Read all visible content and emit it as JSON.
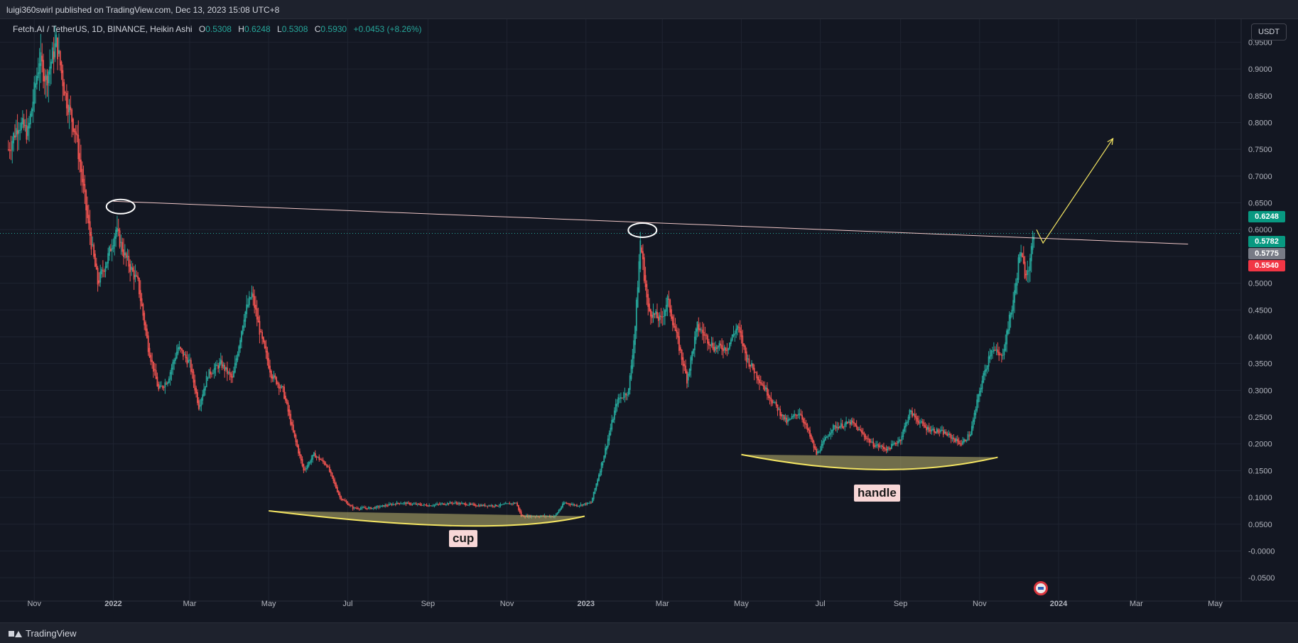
{
  "header": {
    "published_text": "luigi360swirl published on TradingView.com, Dec 13, 2023 15:08 UTC+8"
  },
  "legend": {
    "symbol": "Fetch.AI / TetherUS, 1D, BINANCE, Heikin Ashi",
    "open_key": "O",
    "open": "0.5308",
    "high_key": "H",
    "high": "0.6248",
    "low_key": "L",
    "low": "0.5308",
    "close_key": "C",
    "close": "0.5930",
    "change": "+0.0453 (+8.26%)"
  },
  "currency_button": "USDT",
  "price_tags": [
    {
      "label": "0.6248",
      "value": 0.6248,
      "color": "#089981"
    },
    {
      "label": "0.5782",
      "value": 0.5782,
      "color": "#089981"
    },
    {
      "label": "0.5775",
      "value": 0.5775,
      "color": "#787b86"
    },
    {
      "label": "0.5540",
      "value": 0.554,
      "color": "#f23645"
    }
  ],
  "annotations": {
    "cup_label": "cup",
    "handle_label": "handle"
  },
  "footer": {
    "brand": "TradingView"
  },
  "icons": {
    "brand": "tradingview-logo-icon",
    "event": "us-flag-event-icon"
  },
  "colors": {
    "up": "#26a69a",
    "down": "#ef5350",
    "background": "#131722",
    "trendline": "#f0c7c7",
    "cup_line": "#f5e663",
    "arrow": "#f5e663"
  },
  "chart_data": {
    "type": "candlestick",
    "style": "Heikin Ashi",
    "ylim": [
      -0.075,
      0.985
    ],
    "y_ticks": [
      "0.9500",
      "0.9000",
      "0.8500",
      "0.8000",
      "0.7500",
      "0.7000",
      "0.6500",
      "0.6000",
      "0.5500",
      "0.5000",
      "0.4500",
      "0.4000",
      "0.3500",
      "0.3000",
      "0.2500",
      "0.2000",
      "0.1500",
      "0.1000",
      "0.0500",
      "-0.0000",
      "-0.0500"
    ],
    "y_tick_values": [
      0.95,
      0.9,
      0.85,
      0.8,
      0.75,
      0.7,
      0.65,
      0.6,
      0.55,
      0.5,
      0.45,
      0.4,
      0.35,
      0.3,
      0.25,
      0.2,
      0.15,
      0.1,
      0.05,
      0.0,
      -0.05
    ],
    "x_ticks": [
      "Nov",
      "2022",
      "Mar",
      "May",
      "Jul",
      "Sep",
      "Nov",
      "2023",
      "Mar",
      "May",
      "Jul",
      "Sep",
      "Nov",
      "2024",
      "Mar",
      "May"
    ],
    "x_tick_dates": [
      "2021-11-01",
      "2022-01-01",
      "2022-03-01",
      "2022-05-01",
      "2022-07-01",
      "2022-09-01",
      "2022-11-01",
      "2023-01-01",
      "2023-03-01",
      "2023-05-01",
      "2023-07-01",
      "2023-09-01",
      "2023-11-01",
      "2024-01-01",
      "2024-03-01",
      "2024-05-01"
    ],
    "xlim": [
      "2021-10-11",
      "2024-05-21"
    ],
    "last_price": 0.593,
    "price_path": [
      [
        "2021-10-12",
        0.75
      ],
      [
        "2021-10-20",
        0.8
      ],
      [
        "2021-10-27",
        0.78
      ],
      [
        "2021-11-05",
        0.92
      ],
      [
        "2021-11-10",
        0.88
      ],
      [
        "2021-11-18",
        0.95
      ],
      [
        "2021-11-25",
        0.85
      ],
      [
        "2021-12-03",
        0.78
      ],
      [
        "2021-12-12",
        0.62
      ],
      [
        "2021-12-20",
        0.5
      ],
      [
        "2021-12-28",
        0.55
      ],
      [
        "2022-01-03",
        0.6
      ],
      [
        "2022-01-10",
        0.55
      ],
      [
        "2022-01-20",
        0.5
      ],
      [
        "2022-01-28",
        0.38
      ],
      [
        "2022-02-05",
        0.3
      ],
      [
        "2022-02-12",
        0.32
      ],
      [
        "2022-02-20",
        0.38
      ],
      [
        "2022-03-01",
        0.35
      ],
      [
        "2022-03-08",
        0.27
      ],
      [
        "2022-03-15",
        0.33
      ],
      [
        "2022-03-25",
        0.35
      ],
      [
        "2022-04-03",
        0.32
      ],
      [
        "2022-04-12",
        0.44
      ],
      [
        "2022-04-18",
        0.48
      ],
      [
        "2022-04-25",
        0.4
      ],
      [
        "2022-05-03",
        0.33
      ],
      [
        "2022-05-12",
        0.3
      ],
      [
        "2022-05-20",
        0.22
      ],
      [
        "2022-05-28",
        0.15
      ],
      [
        "2022-06-05",
        0.18
      ],
      [
        "2022-06-15",
        0.16
      ],
      [
        "2022-06-25",
        0.1
      ],
      [
        "2022-07-05",
        0.08
      ],
      [
        "2022-07-20",
        0.08
      ],
      [
        "2022-08-10",
        0.09
      ],
      [
        "2022-09-01",
        0.085
      ],
      [
        "2022-09-20",
        0.09
      ],
      [
        "2022-10-10",
        0.085
      ],
      [
        "2022-10-25",
        0.085
      ],
      [
        "2022-11-08",
        0.09
      ],
      [
        "2022-11-12",
        0.065
      ],
      [
        "2022-11-25",
        0.065
      ],
      [
        "2022-12-08",
        0.065
      ],
      [
        "2022-12-15",
        0.09
      ],
      [
        "2022-12-25",
        0.085
      ],
      [
        "2023-01-05",
        0.09
      ],
      [
        "2023-01-15",
        0.18
      ],
      [
        "2023-01-25",
        0.28
      ],
      [
        "2023-02-03",
        0.3
      ],
      [
        "2023-02-08",
        0.42
      ],
      [
        "2023-02-12",
        0.58
      ],
      [
        "2023-02-18",
        0.45
      ],
      [
        "2023-02-28",
        0.43
      ],
      [
        "2023-03-05",
        0.47
      ],
      [
        "2023-03-12",
        0.4
      ],
      [
        "2023-03-20",
        0.32
      ],
      [
        "2023-03-28",
        0.42
      ],
      [
        "2023-04-10",
        0.38
      ],
      [
        "2023-04-20",
        0.38
      ],
      [
        "2023-04-28",
        0.42
      ],
      [
        "2023-05-05",
        0.36
      ],
      [
        "2023-05-15",
        0.32
      ],
      [
        "2023-05-25",
        0.28
      ],
      [
        "2023-06-05",
        0.24
      ],
      [
        "2023-06-15",
        0.26
      ],
      [
        "2023-06-22",
        0.22
      ],
      [
        "2023-06-28",
        0.18
      ],
      [
        "2023-07-10",
        0.23
      ],
      [
        "2023-07-25",
        0.24
      ],
      [
        "2023-08-10",
        0.2
      ],
      [
        "2023-08-22",
        0.19
      ],
      [
        "2023-09-01",
        0.21
      ],
      [
        "2023-09-08",
        0.26
      ],
      [
        "2023-09-20",
        0.23
      ],
      [
        "2023-10-05",
        0.22
      ],
      [
        "2023-10-18",
        0.2
      ],
      [
        "2023-10-25",
        0.22
      ],
      [
        "2023-11-01",
        0.3
      ],
      [
        "2023-11-10",
        0.38
      ],
      [
        "2023-11-18",
        0.36
      ],
      [
        "2023-11-28",
        0.48
      ],
      [
        "2023-12-02",
        0.56
      ],
      [
        "2023-12-06",
        0.52
      ],
      [
        "2023-12-10",
        0.54
      ],
      [
        "2023-12-13",
        0.593
      ]
    ],
    "drawings": {
      "resistance_trendline": {
        "from": [
          "2022-01-01",
          0.653
        ],
        "to": [
          "2024-04-10",
          0.573
        ]
      },
      "cup_curve": {
        "from": [
          "2022-05-01",
          0.075
        ],
        "bottom": [
          "2022-09-25",
          0.047
        ],
        "to": [
          "2022-12-31",
          0.065
        ]
      },
      "handle_curve": {
        "from": [
          "2023-05-01",
          0.18
        ],
        "bottom": [
          "2023-08-15",
          0.152
        ],
        "to": [
          "2023-11-15",
          0.175
        ]
      },
      "breakout_arrow": {
        "points": [
          [
            "2023-12-15",
            0.6
          ],
          [
            "2023-12-20",
            0.575
          ],
          [
            "2024-02-12",
            0.77
          ]
        ]
      },
      "high_markers": [
        {
          "date": "2022-01-05",
          "value": 0.643
        },
        {
          "date": "2023-02-12",
          "value": 0.599
        }
      ]
    }
  }
}
